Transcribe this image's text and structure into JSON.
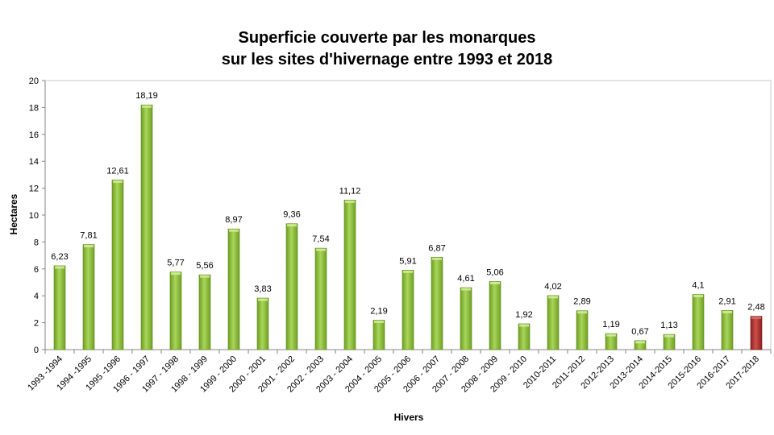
{
  "chart_data": {
    "type": "bar",
    "title_line1": "Superficie couverte par les monarques",
    "title_line2": "sur les sites d'hivernage entre 1993 et 2018",
    "xlabel": "Hivers",
    "ylabel": "Hectares",
    "ylim": [
      0,
      20
    ],
    "yticks": [
      0,
      2,
      4,
      6,
      8,
      10,
      12,
      14,
      16,
      18,
      20
    ],
    "grid": false,
    "categories": [
      "1993 -1994",
      "1994 -1995",
      "1995 -1996",
      "1996 - 1997",
      "1997 - 1998",
      "1998 - 1999",
      "1999 - 2000",
      "2000 - 2001",
      "2001 - 2002",
      "2002 - 2003",
      "2003 - 2004",
      "2004 - 2005",
      "2005 - 2006",
      "2006 - 2007",
      "2007 - 2008",
      "2008 - 2009",
      "2009 - 2010",
      "2010-2011",
      "2011-2012",
      "2012-2013",
      "2013-2014",
      "2014-2015",
      "2015-2016",
      "2016-2017",
      "2017-2018"
    ],
    "values": [
      6.23,
      7.81,
      12.61,
      18.19,
      5.77,
      5.56,
      8.97,
      3.83,
      9.36,
      7.54,
      11.12,
      2.19,
      5.91,
      6.87,
      4.61,
      5.06,
      1.92,
      4.02,
      2.89,
      1.19,
      0.67,
      1.13,
      4.1,
      2.91,
      2.48
    ],
    "value_labels": [
      "6,23",
      "7,81",
      "12,61",
      "18,19",
      "5,77",
      "5,56",
      "8,97",
      "3,83",
      "9,36",
      "7,54",
      "11,12",
      "2,19",
      "5,91",
      "6,87",
      "4,61",
      "5,06",
      "1,92",
      "4,02",
      "2,89",
      "1,19",
      "0,67",
      "1,13",
      "4,1",
      "2,91",
      "2,48"
    ],
    "colors": {
      "default": "#8dbf3a",
      "highlight": "#b2302e"
    },
    "highlight_index": 24
  }
}
